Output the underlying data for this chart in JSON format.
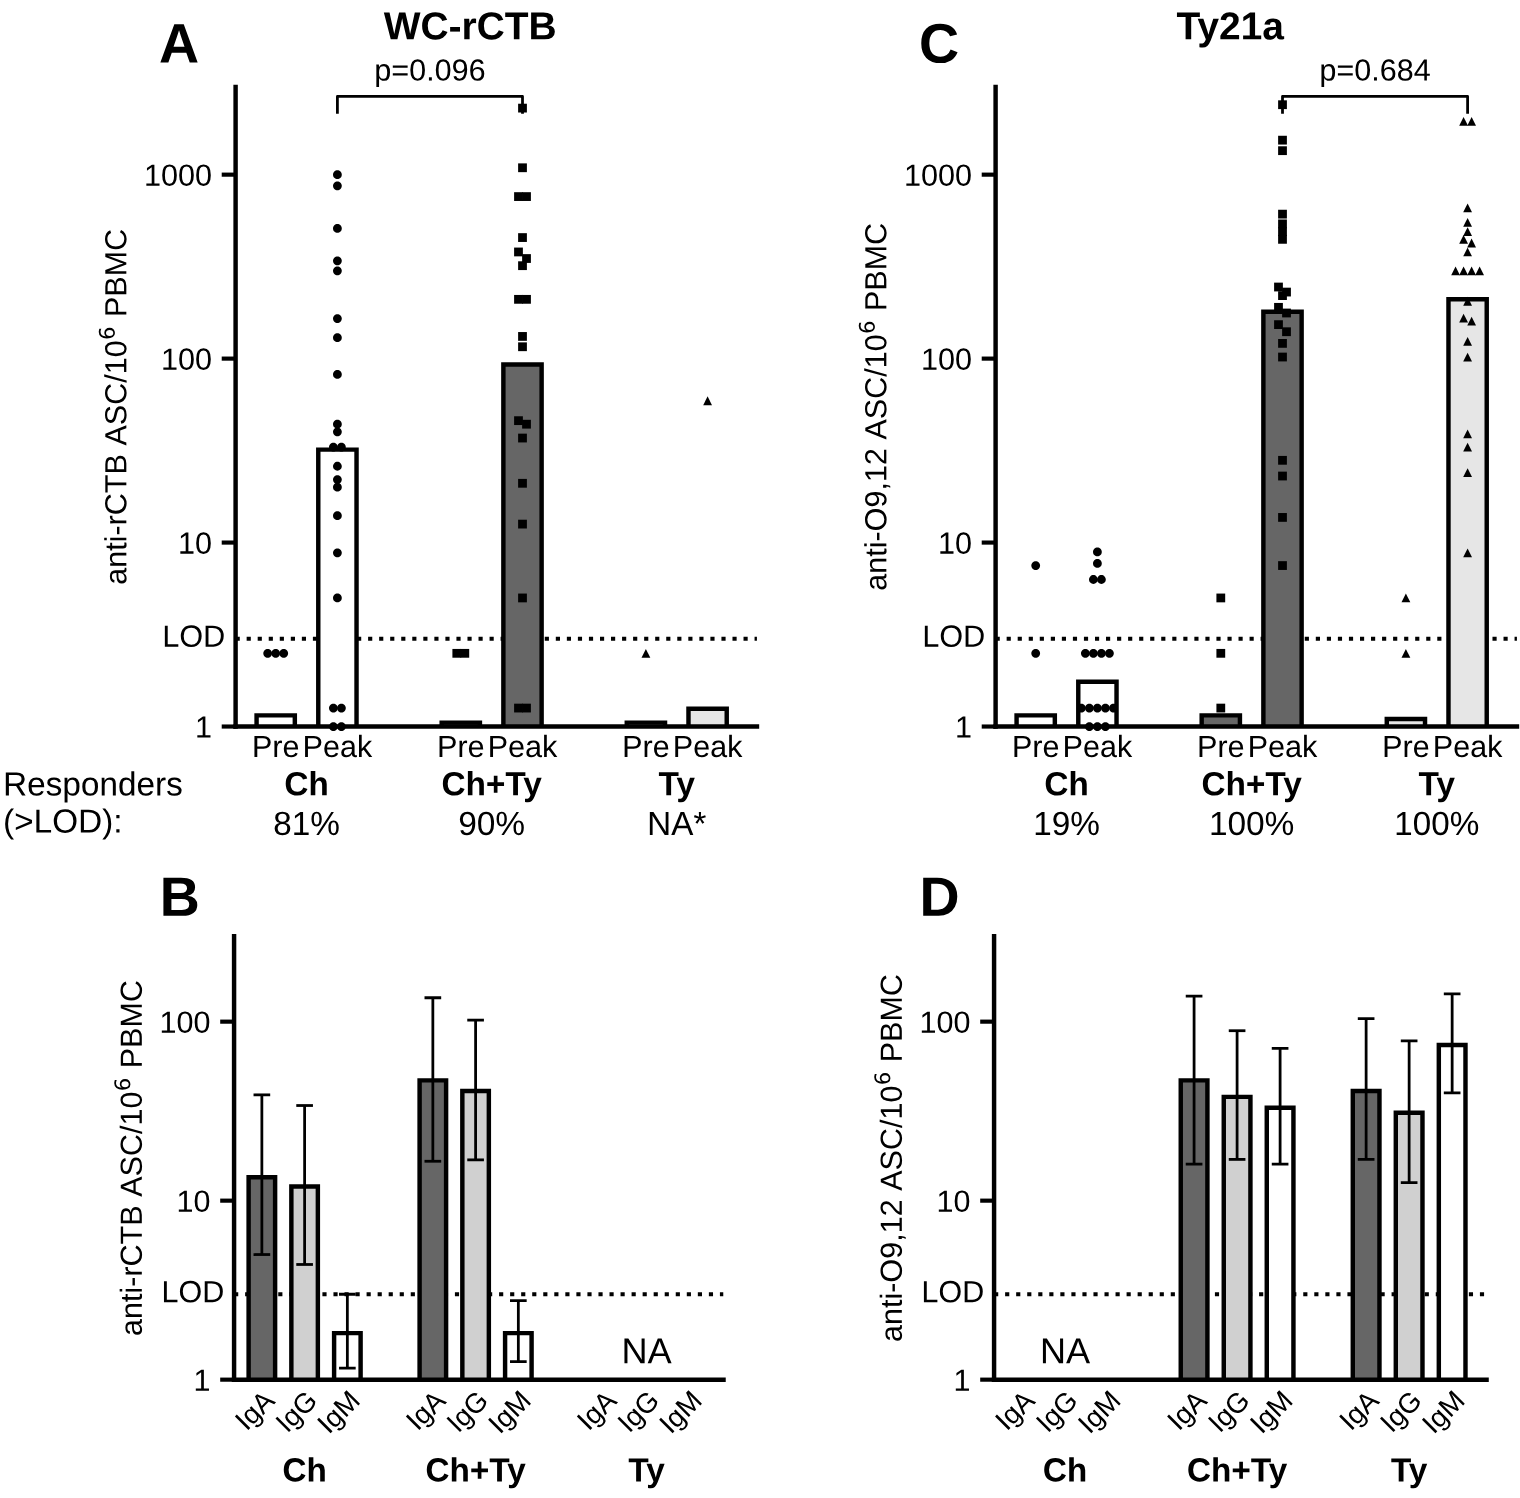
{
  "chart_data": [
    {
      "type": "bar",
      "title": "WC-rCTB",
      "ylabel": "anti-rCTB ASC/10$^{6}$ PBMC",
      "log": true,
      "ylim": [
        1,
        3000
      ],
      "yticks": [
        1,
        10,
        100,
        1000
      ],
      "categories": [
        "Ch",
        "Ch+Ty",
        "Ty"
      ],
      "ref_lines": [
        {
          "axis": "y",
          "value": 3,
          "label": "LOD",
          "line_style": "dotted",
          "color": "#000000"
        }
      ],
      "annotations": [
        "A",
        "Responders\n(>LOD):",
        "81%",
        "90%",
        "NA*",
        "p=0.096"
      ],
      "series": [
        {
          "name": "Pre",
          "colors": [
            "#ffffff",
            "#666666",
            "#e6e6e6"
          ],
          "values": [
            1.15,
            1.05,
            1.05
          ]
        },
        {
          "name": "Peak",
          "colors": [
            "#ffffff",
            "#666666",
            "#e6e6e6"
          ],
          "values": [
            32,
            93,
            1.25
          ]
        },
        {
          "type": "scatter",
          "marker": "circle",
          "color": "#000000",
          "x": [
            "Ch",
            "Ch",
            "Ch"
          ],
          "values": [
            2.5,
            2.5,
            2.5
          ]
        },
        {
          "type": "scatter",
          "marker": "circle",
          "color": "#000000",
          "x": [
            "Ch",
            "Ch",
            "Ch",
            "Ch",
            "Ch",
            "Ch",
            "Ch",
            "Ch",
            "Ch",
            "Ch",
            "Ch",
            "Ch",
            "Ch",
            "Ch",
            "Ch",
            "Ch",
            "Ch",
            "Ch",
            "Ch",
            "Ch",
            "Ch",
            "Ch"
          ],
          "values": [
            1000,
            870,
            510,
            340,
            300,
            165,
            130,
            82,
            44,
            40,
            33,
            33,
            26,
            22,
            20,
            14,
            8.8,
            5.0,
            1.26,
            1.26,
            1,
            1
          ]
        },
        {
          "type": "scatter",
          "marker": "square",
          "color": "#000000",
          "x": [
            "Ch+Ty",
            "Ch+Ty"
          ],
          "values": [
            2.5,
            2.5
          ]
        },
        {
          "type": "scatter",
          "marker": "square",
          "color": "#000000",
          "x": [
            "Ch+Ty",
            "Ch+Ty",
            "Ch+Ty",
            "Ch+Ty",
            "Ch+Ty",
            "Ch+Ty",
            "Ch+Ty",
            "Ch+Ty",
            "Ch+Ty",
            "Ch+Ty",
            "Ch+Ty",
            "Ch+Ty",
            "Ch+Ty",
            "Ch+Ty",
            "Ch+Ty",
            "Ch+Ty",
            "Ch+Ty",
            "Ch+Ty",
            "Ch+Ty",
            "Ch+Ty"
          ],
          "values": [
            2300,
            1090,
            760,
            760,
            455,
            380,
            350,
            320,
            210,
            210,
            132,
            116,
            46,
            44,
            37,
            21,
            12.6,
            5.0,
            1.26,
            1.26
          ]
        },
        {
          "type": "scatter",
          "marker": "triangle",
          "color": "#000000",
          "x": [
            "Ty"
          ],
          "values": [
            2.5
          ]
        },
        {
          "type": "scatter",
          "marker": "triangle",
          "color": "#000000",
          "x": [
            "Ty"
          ],
          "values": [
            59
          ]
        }
      ]
    },
    {
      "type": "bar",
      "title": "Ty21a",
      "ylabel": "anti-O9,12 ASC/10$^{6}$ PBMC",
      "log": true,
      "ylim": [
        1,
        3000
      ],
      "yticks": [
        1,
        10,
        100,
        1000
      ],
      "categories": [
        "Ch",
        "Ch+Ty",
        "Ty"
      ],
      "ref_lines": [
        {
          "axis": "y",
          "value": 3,
          "label": "LOD",
          "line_style": "dotted",
          "color": "#000000"
        }
      ],
      "annotations": [
        "C",
        "19%",
        "100%",
        "100%",
        "p=0.684"
      ],
      "series": [
        {
          "name": "Pre",
          "colors": [
            "#ffffff",
            "#666666",
            "#e6e6e6"
          ],
          "values": [
            1.15,
            1.15,
            1.1
          ]
        },
        {
          "name": "Peak",
          "colors": [
            "#ffffff",
            "#666666",
            "#e6e6e6"
          ],
          "values": [
            1.75,
            180,
            210
          ]
        },
        {
          "type": "scatter",
          "marker": "circle",
          "color": "#000000",
          "x": [
            "Ch",
            "Ch"
          ],
          "values": [
            7.5,
            2.5
          ]
        },
        {
          "type": "scatter",
          "marker": "circle",
          "color": "#000000",
          "x": [
            "Ch",
            "Ch",
            "Ch",
            "Ch",
            "Ch",
            "Ch",
            "Ch",
            "Ch",
            "Ch",
            "Ch",
            "Ch",
            "Ch",
            "Ch",
            "Ch",
            "Ch",
            "Ch"
          ],
          "values": [
            8.9,
            7.7,
            6.3,
            6.3,
            2.5,
            2.5,
            2.5,
            2.5,
            1.26,
            1.26,
            1.26,
            1.26,
            1.26,
            1,
            1,
            1
          ]
        },
        {
          "type": "scatter",
          "marker": "square",
          "color": "#000000",
          "x": [
            "Ch+Ty",
            "Ch+Ty",
            "Ch+Ty"
          ],
          "values": [
            5.0,
            2.5,
            1.26
          ]
        },
        {
          "type": "scatter",
          "marker": "square",
          "color": "#000000",
          "x": [
            "Ch+Ty",
            "Ch+Ty",
            "Ch+Ty",
            "Ch+Ty",
            "Ch+Ty",
            "Ch+Ty",
            "Ch+Ty",
            "Ch+Ty",
            "Ch+Ty",
            "Ch+Ty",
            "Ch+Ty",
            "Ch+Ty",
            "Ch+Ty",
            "Ch+Ty",
            "Ch+Ty",
            "Ch+Ty",
            "Ch+Ty",
            "Ch+Ty",
            "Ch+Ty",
            "Ch+Ty"
          ],
          "values": [
            2400,
            1540,
            1350,
            610,
            540,
            490,
            445,
            245,
            230,
            220,
            190,
            177,
            153,
            140,
            121,
            102,
            28,
            23,
            13.7,
            7.5
          ]
        },
        {
          "type": "scatter",
          "marker": "triangle",
          "color": "#000000",
          "x": [
            "Ty",
            "Ty"
          ],
          "values": [
            5.0,
            2.5
          ]
        },
        {
          "type": "scatter",
          "marker": "triangle",
          "color": "#000000",
          "x": [
            "Ty",
            "Ty",
            "Ty",
            "Ty",
            "Ty",
            "Ty",
            "Ty",
            "Ty",
            "Ty",
            "Ty",
            "Ty",
            "Ty",
            "Ty",
            "Ty",
            "Ty",
            "Ty",
            "Ty",
            "Ty",
            "Ty",
            "Ty",
            "Ty"
          ],
          "values": [
            1950,
            1950,
            660,
            550,
            490,
            445,
            425,
            380,
            300,
            300,
            300,
            300,
            205,
            166,
            160,
            124,
            102,
            39,
            33,
            24,
            8.8
          ]
        }
      ]
    },
    {
      "type": "bar",
      "ylabel": "anti-rCTB ASC/10$^{6}$ PBMC",
      "log": true,
      "ylim": [
        1,
        300
      ],
      "yticks": [
        1,
        10,
        100
      ],
      "categories": [
        "Ch",
        "Ch+Ty",
        "Ty"
      ],
      "ref_lines": [
        {
          "axis": "y",
          "value": 3,
          "label": "LOD",
          "line_style": "dotted",
          "color": "#000000"
        }
      ],
      "annotations": [
        "B",
        "NA"
      ],
      "series": [
        {
          "name": "IgA",
          "color": "#666666",
          "values": [
            13.5,
            47,
            null
          ],
          "errors": [
            [
              5.0,
              39
            ],
            [
              16.6,
              136
            ],
            null
          ]
        },
        {
          "name": "IgG",
          "color": "#d0d0d0",
          "values": [
            12,
            41,
            null
          ],
          "errors": [
            [
              4.4,
              34
            ],
            [
              16.9,
              102
            ],
            null
          ]
        },
        {
          "name": "IgM",
          "color": "#ffffff",
          "values": [
            1.82,
            1.82,
            null
          ],
          "errors": [
            [
              1.16,
              3.0
            ],
            [
              1.26,
              2.76
            ],
            null
          ]
        }
      ]
    },
    {
      "type": "bar",
      "ylabel": "anti-O9,12 ASC/10$^{6}$ PBMC",
      "log": true,
      "ylim": [
        1,
        300
      ],
      "yticks": [
        1,
        10,
        100
      ],
      "categories": [
        "Ch",
        "Ch+Ty",
        "Ty"
      ],
      "ref_lines": [
        {
          "axis": "y",
          "value": 3,
          "label": "LOD",
          "line_style": "dotted",
          "color": "#000000"
        }
      ],
      "annotations": [
        "D",
        "NA"
      ],
      "series": [
        {
          "name": "IgA",
          "color": "#666666",
          "values": [
            null,
            47,
            41
          ],
          "errors": [
            null,
            [
              16,
              139
            ],
            [
              17,
              104
            ]
          ]
        },
        {
          "name": "IgG",
          "color": "#d0d0d0",
          "values": [
            null,
            38,
            31
          ],
          "errors": [
            null,
            [
              17,
              89
            ],
            [
              12.6,
              78
            ]
          ]
        },
        {
          "name": "IgM",
          "color": "#ffffff",
          "values": [
            null,
            33,
            74
          ],
          "errors": [
            null,
            [
              16,
              71
            ],
            [
              40,
              143
            ]
          ]
        }
      ]
    }
  ]
}
